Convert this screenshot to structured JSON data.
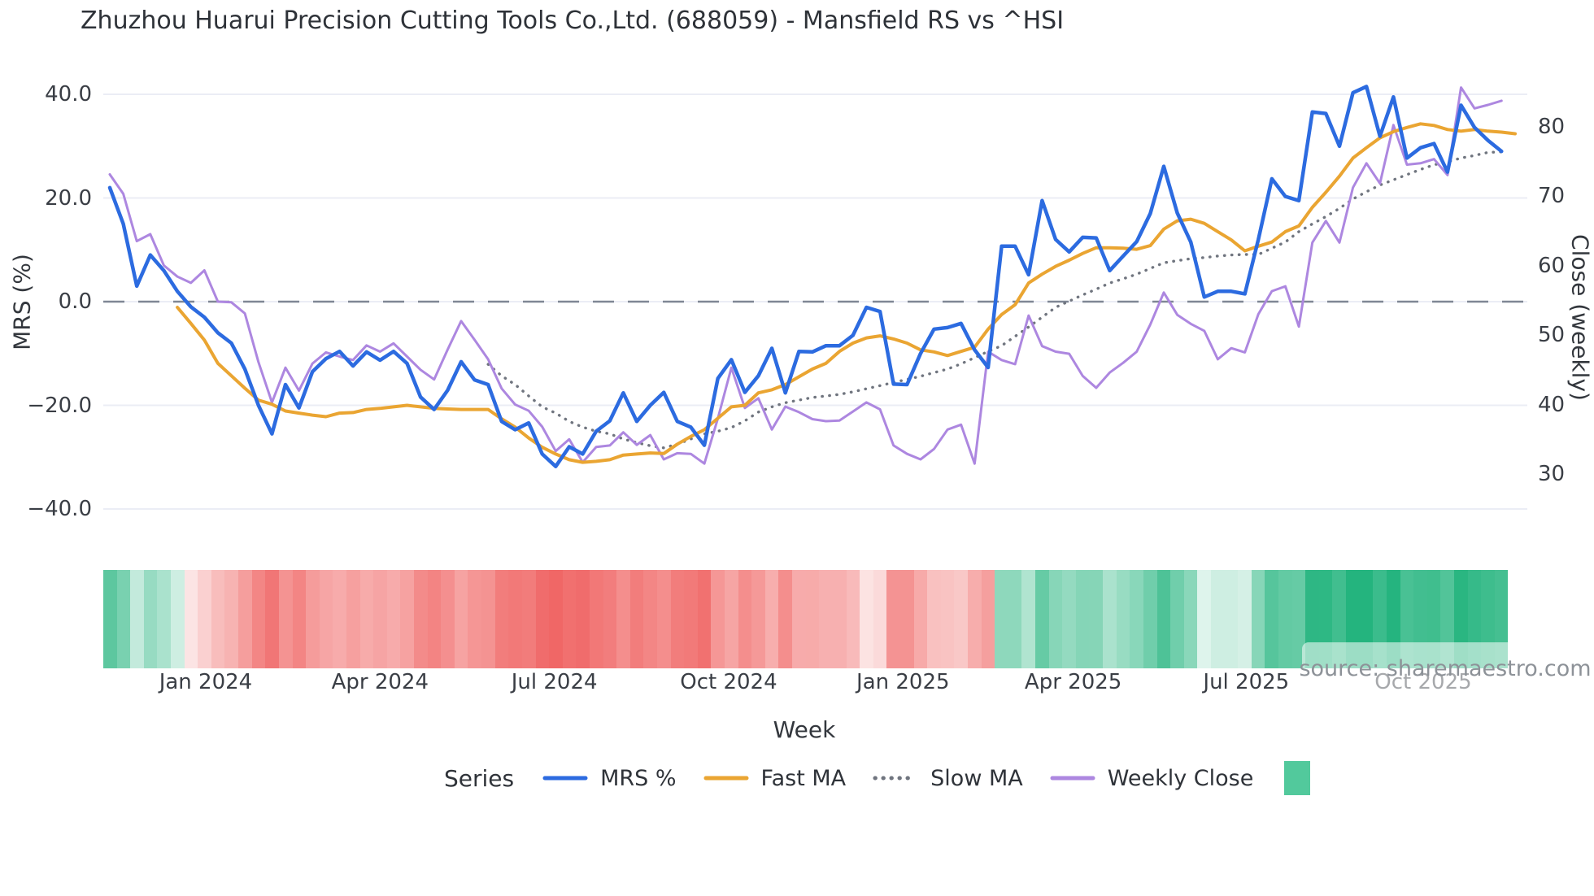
{
  "chart_data": {
    "type": "line",
    "title": "Zhuzhou Huarui Precision Cutting Tools Co.,Ltd. (688059) - Mansfield RS vs ^HSI",
    "watermark": "source: sharemaestro.com",
    "weeks": 104,
    "x": {
      "label": "Week",
      "ticks": [
        {
          "label": "Jan 2024",
          "week": 7.1
        },
        {
          "label": "Apr 2024",
          "week": 20.0
        },
        {
          "label": "Jul 2024",
          "week": 32.9
        },
        {
          "label": "Oct 2024",
          "week": 45.8
        },
        {
          "label": "Jan 2025",
          "week": 58.7
        },
        {
          "label": "Apr 2025",
          "week": 71.3
        },
        {
          "label": "Jul 2025",
          "week": 84.1
        },
        {
          "label": "Oct 2025",
          "week": 97.2
        }
      ]
    },
    "y_left": {
      "label": "MRS (%)",
      "ticks": [
        {
          "v": 40,
          "label": "40.0"
        },
        {
          "v": 20,
          "label": "20.0"
        },
        {
          "v": 0,
          "label": "0.0"
        },
        {
          "v": -20,
          "label": "−20.0"
        },
        {
          "v": -40,
          "label": "−40.0"
        }
      ],
      "range": [
        -44,
        44
      ]
    },
    "y_right": {
      "label": "Close (weekly)",
      "ticks": [
        {
          "v": 80,
          "label": "80"
        },
        {
          "v": 70,
          "label": "70"
        },
        {
          "v": 60,
          "label": "60"
        },
        {
          "v": 50,
          "label": "50"
        },
        {
          "v": 40,
          "label": "40"
        },
        {
          "v": 30,
          "label": "30"
        }
      ]
    },
    "zero_line": {
      "value": 0,
      "color": "#7f8795",
      "style": "dashed"
    },
    "grid": {
      "on": true,
      "color": "#ebedf5"
    },
    "legend": {
      "title": "Series",
      "position": "bottom",
      "extra_swatch_color": "#52c99c"
    },
    "series": [
      {
        "name": "MRS %",
        "axis": "left",
        "color": "#2c6be0",
        "style": "solid",
        "width": 4.5,
        "values": [
          22.0,
          15.0,
          3.0,
          9.0,
          6.0,
          2.0,
          -1.0,
          -3.0,
          -6.0,
          -8.0,
          -13.0,
          -20.0,
          -25.5,
          -16.0,
          -20.5,
          -13.5,
          -11.0,
          -9.6,
          -12.4,
          -9.7,
          -11.3,
          -9.6,
          -11.9,
          -18.4,
          -20.8,
          -17.1,
          -11.6,
          -15.1,
          -16.0,
          -23.1,
          -24.7,
          -23.4,
          -29.4,
          -31.8,
          -28.0,
          -29.4,
          -25.0,
          -23.0,
          -17.6,
          -23.1,
          -20.0,
          -17.5,
          -23.1,
          -24.2,
          -27.7,
          -14.8,
          -11.2,
          -17.5,
          -14.3,
          -9.0,
          -17.6,
          -9.6,
          -9.7,
          -8.5,
          -8.5,
          -6.5,
          -1.1,
          -1.9,
          -15.9,
          -16.0,
          -10.0,
          -5.3,
          -5.0,
          -4.2,
          -9.3,
          -12.7,
          10.7,
          10.7,
          5.2,
          19.5,
          12.0,
          9.6,
          12.4,
          12.3,
          6.0,
          8.8,
          11.6,
          17.0,
          26.1,
          17.1,
          11.5,
          0.9,
          2.0,
          2.0,
          1.5,
          12.0,
          23.7,
          20.3,
          19.5,
          36.6,
          36.3,
          30.0,
          40.3,
          41.5,
          31.9,
          39.5,
          27.7,
          29.7,
          30.5,
          25.0,
          37.9,
          33.6,
          31.1,
          29.0
        ]
      },
      {
        "name": "Fast MA",
        "axis": "left",
        "color": "#eaa532",
        "style": "solid",
        "width": 4,
        "values": [
          null,
          null,
          null,
          null,
          null,
          -1.1,
          -4.2,
          -7.4,
          -11.9,
          -14.3,
          -16.7,
          -19.0,
          -19.8,
          -21.1,
          -21.5,
          -21.9,
          -22.2,
          -21.5,
          -21.4,
          -20.8,
          -20.6,
          -20.3,
          -20.0,
          -20.3,
          -20.6,
          -20.7,
          -20.8,
          -20.8,
          -20.8,
          -22.6,
          -24.2,
          -26.3,
          -28.1,
          -29.4,
          -30.5,
          -31.0,
          -30.8,
          -30.5,
          -29.6,
          -29.4,
          -29.2,
          -29.3,
          -27.5,
          -26.0,
          -24.7,
          -22.5,
          -20.3,
          -20.0,
          -17.6,
          -17.0,
          -16.0,
          -14.5,
          -13.0,
          -11.9,
          -9.6,
          -8.0,
          -7.0,
          -6.6,
          -7.2,
          -8.0,
          -9.3,
          -9.7,
          -10.4,
          -9.6,
          -8.8,
          -5.3,
          -2.5,
          -0.6,
          3.6,
          5.3,
          6.8,
          8.0,
          9.3,
          10.4,
          10.4,
          10.3,
          10.1,
          10.8,
          14.0,
          15.6,
          15.9,
          15.1,
          13.5,
          11.9,
          9.8,
          10.7,
          11.5,
          13.5,
          14.6,
          18.2,
          21.1,
          24.2,
          27.7,
          29.7,
          31.6,
          32.8,
          33.6,
          34.3,
          34.0,
          33.2,
          32.9,
          33.2,
          32.9,
          32.7,
          32.4
        ]
      },
      {
        "name": "Slow MA",
        "axis": "left",
        "color": "#70757f",
        "style": "dotted",
        "width": 3.4,
        "values": [
          null,
          null,
          null,
          null,
          null,
          null,
          null,
          null,
          null,
          null,
          null,
          null,
          null,
          null,
          null,
          null,
          null,
          null,
          null,
          null,
          null,
          null,
          null,
          null,
          null,
          null,
          null,
          null,
          -12.1,
          -14.3,
          -16.0,
          -18.2,
          -20.3,
          -21.5,
          -23.1,
          -24.2,
          -25.0,
          -25.5,
          -26.5,
          -27.2,
          -27.8,
          -28.2,
          -27.5,
          -26.5,
          -25.5,
          -25.0,
          -24.3,
          -23.0,
          -21.3,
          -20.3,
          -19.5,
          -19.0,
          -18.5,
          -18.2,
          -17.9,
          -17.4,
          -16.8,
          -16.2,
          -15.6,
          -15.0,
          -14.4,
          -13.7,
          -13.0,
          -12.0,
          -10.8,
          -9.6,
          -8.5,
          -6.7,
          -4.9,
          -3.0,
          -1.1,
          0.1,
          1.3,
          2.4,
          3.6,
          4.4,
          5.3,
          6.4,
          7.5,
          7.9,
          8.3,
          8.5,
          8.8,
          9.0,
          9.1,
          9.1,
          10.3,
          11.5,
          13.5,
          15.0,
          16.4,
          18.0,
          19.8,
          21.2,
          22.5,
          23.5,
          24.5,
          25.5,
          26.4,
          27.0,
          27.7,
          28.2,
          28.8,
          28.9
        ]
      },
      {
        "name": "Weekly Close",
        "axis": "right",
        "color": "#ad87e0",
        "style": "solid",
        "width": 3,
        "values": [
          73.1,
          70.3,
          63.5,
          64.5,
          60.0,
          58.4,
          57.5,
          59.3,
          54.8,
          54.7,
          53.1,
          46.1,
          40.3,
          45.3,
          42.0,
          45.9,
          47.5,
          46.9,
          46.4,
          48.5,
          47.6,
          48.8,
          46.9,
          45.0,
          43.6,
          47.9,
          52.0,
          49.3,
          46.5,
          42.3,
          40.0,
          39.1,
          36.8,
          33.3,
          35.0,
          31.7,
          33.9,
          34.1,
          36.0,
          34.2,
          35.6,
          32.1,
          33.0,
          32.9,
          31.5,
          38.0,
          45.3,
          39.5,
          40.9,
          36.4,
          39.7,
          38.9,
          37.9,
          37.6,
          37.7,
          39.0,
          40.3,
          39.3,
          34.1,
          32.9,
          32.1,
          33.6,
          36.4,
          37.1,
          31.5,
          47.6,
          46.4,
          45.8,
          52.8,
          48.4,
          47.6,
          47.3,
          44.1,
          42.4,
          44.6,
          46.0,
          47.6,
          51.5,
          56.1,
          52.9,
          51.6,
          50.6,
          46.5,
          48.1,
          47.5,
          53.0,
          56.3,
          57.0,
          51.2,
          63.3,
          66.4,
          63.3,
          71.2,
          74.7,
          71.8,
          80.2,
          74.5,
          74.7,
          75.3,
          73.0,
          85.6,
          82.6,
          83.1,
          83.7
        ]
      }
    ],
    "heatmap": {
      "based_on": "MRS %",
      "positive_base_color": "#24b47e",
      "negative_base_color": "#ee5453",
      "intensity": "sqrt(|MRS|/40)"
    }
  }
}
